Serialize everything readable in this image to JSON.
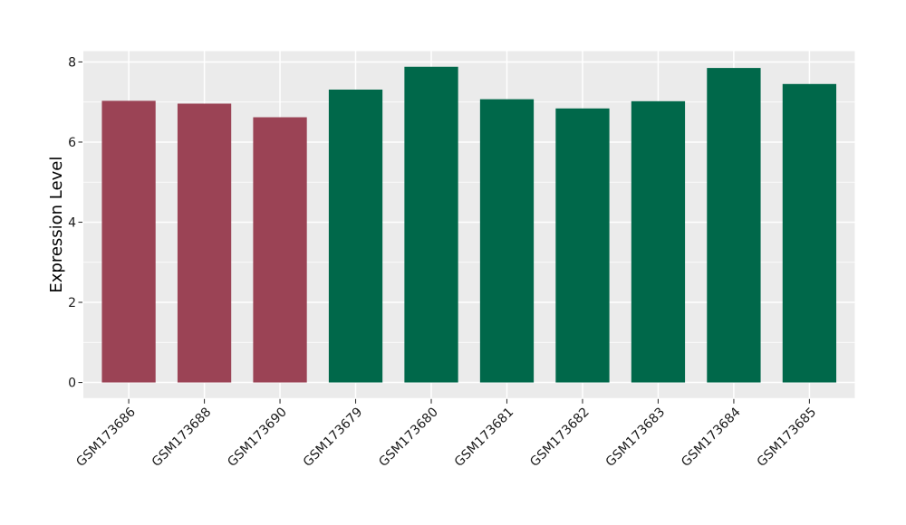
{
  "chart_data": {
    "type": "bar",
    "title": "",
    "xlabel": "",
    "ylabel": "Expression Level",
    "categories": [
      "GSM173686",
      "GSM173688",
      "GSM173690",
      "GSM173679",
      "GSM173680",
      "GSM173681",
      "GSM173682",
      "GSM173683",
      "GSM173684",
      "GSM173685"
    ],
    "values": [
      7.03,
      6.96,
      6.62,
      7.31,
      7.88,
      7.07,
      6.84,
      7.02,
      7.85,
      7.45
    ],
    "bar_colors": [
      "#9B4355",
      "#9B4355",
      "#9B4355",
      "#00684A",
      "#00684A",
      "#00684A",
      "#00684A",
      "#00684A",
      "#00684A",
      "#00684A"
    ],
    "group_colors": {
      "maroon": "#9B4355",
      "green": "#00684A"
    },
    "yticks": [
      0,
      2,
      4,
      6,
      8
    ],
    "yticks_minor": [
      1,
      3,
      5,
      7
    ],
    "ylim": [
      -0.39,
      8.27
    ],
    "bar_width_ratio": 0.71,
    "grid": "on",
    "legend": "none",
    "panel_bg": "#EBEBEB",
    "grid_color": "#FFFFFF",
    "tick_color": "#333333",
    "tick_label_color": "#1a1a1a",
    "axis_label_color": "#000000",
    "x_tick_rotation_deg": -45
  }
}
